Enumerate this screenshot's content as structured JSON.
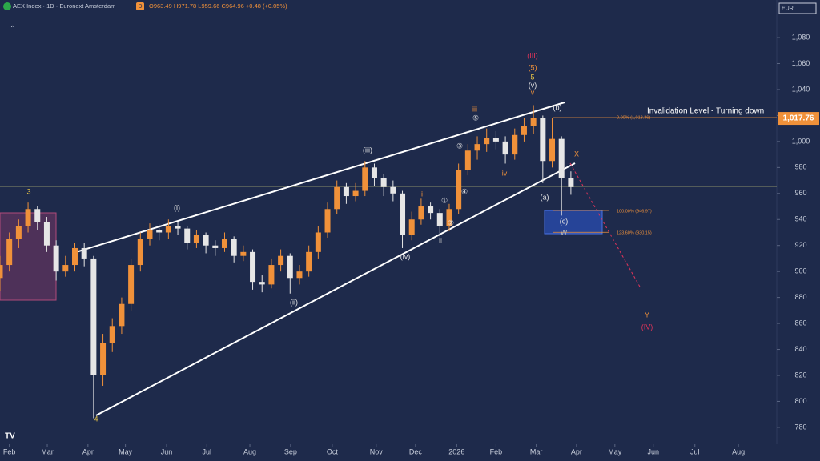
{
  "header": {
    "symbol": "AEX Index · 1D · Euronext Amsterdam",
    "badge": "D",
    "ohlc": "O963.49 H971.78 L959.66 C964.96 +0.48 (+0.05%)",
    "currency": "EUR"
  },
  "chart_data": {
    "type": "candlestick",
    "up_color": "#f0913a",
    "down_color": "#e6e6e6",
    "last_price": 964.96,
    "price_label": {
      "value": 1017.76,
      "label": "1,017.76"
    },
    "invalidation": {
      "text": "Invalidation Level - Turning down",
      "value": 1018.36
    },
    "fib_levels": [
      {
        "value": 1018.36,
        "label": "0.00% (1,018.36)"
      },
      {
        "value": 946.97,
        "label": "100.00% (946.97)"
      },
      {
        "value": 930.15,
        "label": "123.60% (930.15)"
      }
    ],
    "xlim": [
      0,
      83
    ],
    "ylim": [
      767,
      1109
    ],
    "xticks": [
      {
        "value": 1.0,
        "label": "Feb"
      },
      {
        "value": 5.05,
        "label": "Mar"
      },
      {
        "value": 9.4,
        "label": "Apr"
      },
      {
        "value": 13.4,
        "label": "May"
      },
      {
        "value": 17.8,
        "label": "Jun"
      },
      {
        "value": 22.1,
        "label": "Jul"
      },
      {
        "value": 26.7,
        "label": "Aug"
      },
      {
        "value": 31.05,
        "label": "Sep"
      },
      {
        "value": 35.5,
        "label": "Oct"
      },
      {
        "value": 40.2,
        "label": "Nov"
      },
      {
        "value": 44.4,
        "label": "Dec"
      },
      {
        "value": 48.8,
        "label": "2026"
      },
      {
        "value": 53.0,
        "label": "Feb"
      },
      {
        "value": 57.3,
        "label": "Mar"
      },
      {
        "value": 61.6,
        "label": "Apr"
      },
      {
        "value": 65.7,
        "label": "May"
      },
      {
        "value": 69.8,
        "label": "Jun"
      },
      {
        "value": 74.25,
        "label": "Jul"
      },
      {
        "value": 78.9,
        "label": "Aug"
      }
    ],
    "yticks": [
      780,
      800,
      820,
      840,
      860,
      880,
      900,
      920,
      940,
      960,
      980,
      {
        "value": 1000,
        "label": "1,000"
      },
      {
        "value": 1020,
        "label": "1,020"
      },
      {
        "value": 1040,
        "label": "1,040"
      },
      {
        "value": 1060,
        "label": "1,060"
      },
      {
        "value": 1080,
        "label": "1,080"
      }
    ],
    "candles": [
      {
        "x": 0,
        "o": 895,
        "h": 912,
        "l": 885,
        "c": 905
      },
      {
        "x": 1,
        "o": 905,
        "h": 930,
        "l": 900,
        "c": 925
      },
      {
        "x": 2,
        "o": 925,
        "h": 940,
        "l": 918,
        "c": 935
      },
      {
        "x": 3,
        "o": 935,
        "h": 953,
        "l": 930,
        "c": 948
      },
      {
        "x": 4,
        "o": 948,
        "h": 950,
        "l": 932,
        "c": 938
      },
      {
        "x": 5,
        "o": 938,
        "h": 942,
        "l": 915,
        "c": 920
      },
      {
        "x": 6,
        "o": 920,
        "h": 924,
        "l": 893,
        "c": 900
      },
      {
        "x": 7,
        "o": 900,
        "h": 912,
        "l": 896,
        "c": 905
      },
      {
        "x": 8,
        "o": 905,
        "h": 922,
        "l": 900,
        "c": 918
      },
      {
        "x": 9,
        "o": 918,
        "h": 922,
        "l": 904,
        "c": 910
      },
      {
        "x": 10,
        "o": 910,
        "h": 912,
        "l": 787,
        "c": 820
      },
      {
        "x": 11,
        "o": 820,
        "h": 852,
        "l": 812,
        "c": 845
      },
      {
        "x": 12,
        "o": 845,
        "h": 864,
        "l": 838,
        "c": 858
      },
      {
        "x": 13,
        "o": 858,
        "h": 880,
        "l": 852,
        "c": 875
      },
      {
        "x": 14,
        "o": 875,
        "h": 910,
        "l": 870,
        "c": 905
      },
      {
        "x": 15,
        "o": 905,
        "h": 930,
        "l": 900,
        "c": 925
      },
      {
        "x": 16,
        "o": 925,
        "h": 937,
        "l": 920,
        "c": 932
      },
      {
        "x": 17,
        "o": 932,
        "h": 936,
        "l": 924,
        "c": 930
      },
      {
        "x": 18,
        "o": 930,
        "h": 940,
        "l": 925,
        "c": 935
      },
      {
        "x": 19,
        "o": 935,
        "h": 938,
        "l": 928,
        "c": 933
      },
      {
        "x": 20,
        "o": 933,
        "h": 935,
        "l": 917,
        "c": 922
      },
      {
        "x": 21,
        "o": 922,
        "h": 932,
        "l": 918,
        "c": 928
      },
      {
        "x": 22,
        "o": 928,
        "h": 930,
        "l": 914,
        "c": 920
      },
      {
        "x": 23,
        "o": 920,
        "h": 924,
        "l": 912,
        "c": 918
      },
      {
        "x": 24,
        "o": 918,
        "h": 930,
        "l": 915,
        "c": 925
      },
      {
        "x": 25,
        "o": 925,
        "h": 927,
        "l": 907,
        "c": 912
      },
      {
        "x": 26,
        "o": 912,
        "h": 920,
        "l": 908,
        "c": 915
      },
      {
        "x": 27,
        "o": 915,
        "h": 917,
        "l": 886,
        "c": 892
      },
      {
        "x": 28,
        "o": 892,
        "h": 897,
        "l": 884,
        "c": 890
      },
      {
        "x": 29,
        "o": 890,
        "h": 910,
        "l": 887,
        "c": 905
      },
      {
        "x": 30,
        "o": 905,
        "h": 917,
        "l": 900,
        "c": 912
      },
      {
        "x": 31,
        "o": 912,
        "h": 914,
        "l": 883,
        "c": 895
      },
      {
        "x": 32,
        "o": 895,
        "h": 905,
        "l": 890,
        "c": 900
      },
      {
        "x": 33,
        "o": 900,
        "h": 920,
        "l": 896,
        "c": 915
      },
      {
        "x": 34,
        "o": 915,
        "h": 935,
        "l": 910,
        "c": 930
      },
      {
        "x": 35,
        "o": 930,
        "h": 953,
        "l": 926,
        "c": 948
      },
      {
        "x": 36,
        "o": 948,
        "h": 970,
        "l": 944,
        "c": 965
      },
      {
        "x": 37,
        "o": 965,
        "h": 968,
        "l": 952,
        "c": 958
      },
      {
        "x": 38,
        "o": 958,
        "h": 968,
        "l": 954,
        "c": 962
      },
      {
        "x": 39,
        "o": 962,
        "h": 985,
        "l": 958,
        "c": 980
      },
      {
        "x": 40,
        "o": 980,
        "h": 983,
        "l": 966,
        "c": 972
      },
      {
        "x": 41,
        "o": 972,
        "h": 975,
        "l": 958,
        "c": 965
      },
      {
        "x": 42,
        "o": 965,
        "h": 970,
        "l": 954,
        "c": 960
      },
      {
        "x": 43,
        "o": 960,
        "h": 962,
        "l": 918,
        "c": 928
      },
      {
        "x": 44,
        "o": 928,
        "h": 946,
        "l": 924,
        "c": 940
      },
      {
        "x": 45,
        "o": 940,
        "h": 956,
        "l": 936,
        "c": 950
      },
      {
        "x": 46,
        "o": 950,
        "h": 953,
        "l": 940,
        "c": 945
      },
      {
        "x": 47,
        "o": 945,
        "h": 948,
        "l": 927,
        "c": 935
      },
      {
        "x": 48,
        "o": 935,
        "h": 952,
        "l": 931,
        "c": 948
      },
      {
        "x": 49,
        "o": 948,
        "h": 983,
        "l": 944,
        "c": 978
      },
      {
        "x": 50,
        "o": 978,
        "h": 998,
        "l": 974,
        "c": 993
      },
      {
        "x": 51,
        "o": 993,
        "h": 1004,
        "l": 986,
        "c": 998
      },
      {
        "x": 52,
        "o": 998,
        "h": 1010,
        "l": 992,
        "c": 1003
      },
      {
        "x": 53,
        "o": 1003,
        "h": 1008,
        "l": 994,
        "c": 1000
      },
      {
        "x": 54,
        "o": 1000,
        "h": 1004,
        "l": 983,
        "c": 990
      },
      {
        "x": 55,
        "o": 990,
        "h": 1010,
        "l": 986,
        "c": 1005
      },
      {
        "x": 56,
        "o": 1005,
        "h": 1018,
        "l": 1000,
        "c": 1012
      },
      {
        "x": 57,
        "o": 1012,
        "h": 1028,
        "l": 1006,
        "c": 1018
      },
      {
        "x": 58,
        "o": 1018,
        "h": 1020,
        "l": 968,
        "c": 985
      },
      {
        "x": 59,
        "o": 985,
        "h": 1018,
        "l": 980,
        "c": 1002
      },
      {
        "x": 60,
        "o": 1002,
        "h": 1004,
        "l": 943,
        "c": 972
      },
      {
        "x": 61,
        "o": 972,
        "h": 977,
        "l": 959,
        "c": 964.96
      }
    ],
    "annotations": [
      {
        "text": "3",
        "color": "#e8c547"
      },
      {
        "text": "4",
        "color": "#e8c547"
      },
      {
        "text": "(i)",
        "color": "#e6e6e6"
      },
      {
        "text": "(ii)",
        "color": "#e6e6e6"
      },
      {
        "text": "(iii)",
        "color": "#e6e6e6"
      },
      {
        "text": "(iv)",
        "color": "#e6e6e6"
      },
      {
        "text": "i",
        "color": "#f0913a"
      },
      {
        "text": "ii",
        "color": "#bbbbbb"
      },
      {
        "text": "iii",
        "color": "#f0913a"
      },
      {
        "text": "iv",
        "color": "#f0913a"
      },
      {
        "text": "v",
        "color": "#f0913a"
      },
      {
        "text": "(v)",
        "color": "#e6e6e6"
      },
      {
        "text": "5",
        "color": "#e8c547"
      },
      {
        "text": "(5)",
        "color": "#f0913a"
      },
      {
        "text": "(III)",
        "color": "#e0345a"
      },
      {
        "text": "(a)",
        "color": "#e6e6e6"
      },
      {
        "text": "(b)",
        "color": "#e6e6e6"
      },
      {
        "text": "(c)",
        "color": "#e6e6e6"
      },
      {
        "text": "W",
        "color": "#bbbbbb"
      },
      {
        "text": "X",
        "color": "#f0913a"
      },
      {
        "text": "Y",
        "color": "#f0913a"
      },
      {
        "text": "(IV)",
        "color": "#e0345a"
      },
      {
        "text": "①",
        "color": "#e6e6e6"
      },
      {
        "text": "②",
        "color": "#e6e6e6"
      },
      {
        "text": "③",
        "color": "#e6e6e6"
      },
      {
        "text": "④",
        "color": "#e6e6e6"
      },
      {
        "text": "⑤",
        "color": "#e6e6e6"
      }
    ]
  }
}
